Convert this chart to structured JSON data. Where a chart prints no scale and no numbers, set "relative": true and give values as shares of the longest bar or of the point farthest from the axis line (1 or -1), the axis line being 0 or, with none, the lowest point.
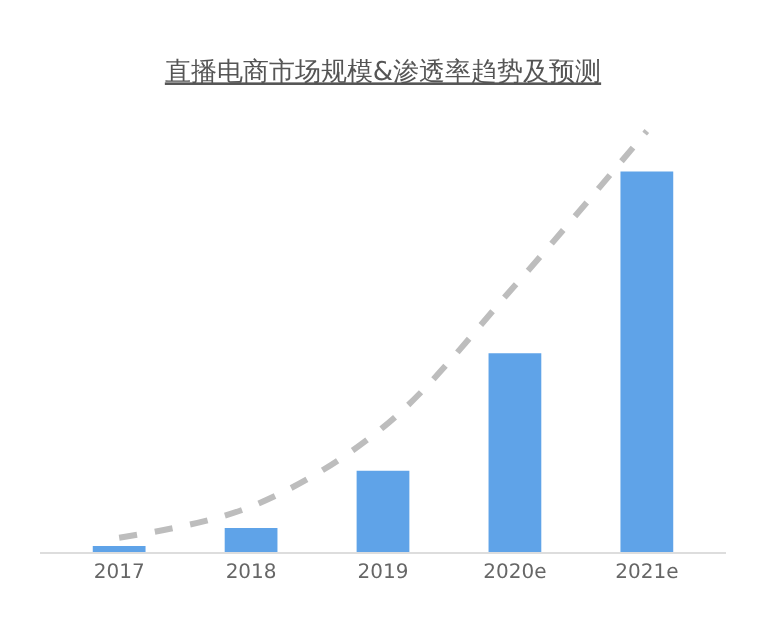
{
  "chart_data": {
    "type": "bar",
    "title": "直播电商市场规模&渗透率趋势及预测",
    "relative": true,
    "categories": [
      "2017",
      "2018",
      "2019",
      "2020e",
      "2021e"
    ],
    "series": [
      {
        "color": "#5fa3e8",
        "values": [
          0.014,
          0.057,
          0.193,
          0.472,
          0.904
        ]
      },
      {
        "type": "line",
        "color": "#bdbdbd",
        "line_style": "dashed",
        "values": [
          0.034,
          0.108,
          0.296,
          0.633,
          1
        ]
      }
    ]
  }
}
